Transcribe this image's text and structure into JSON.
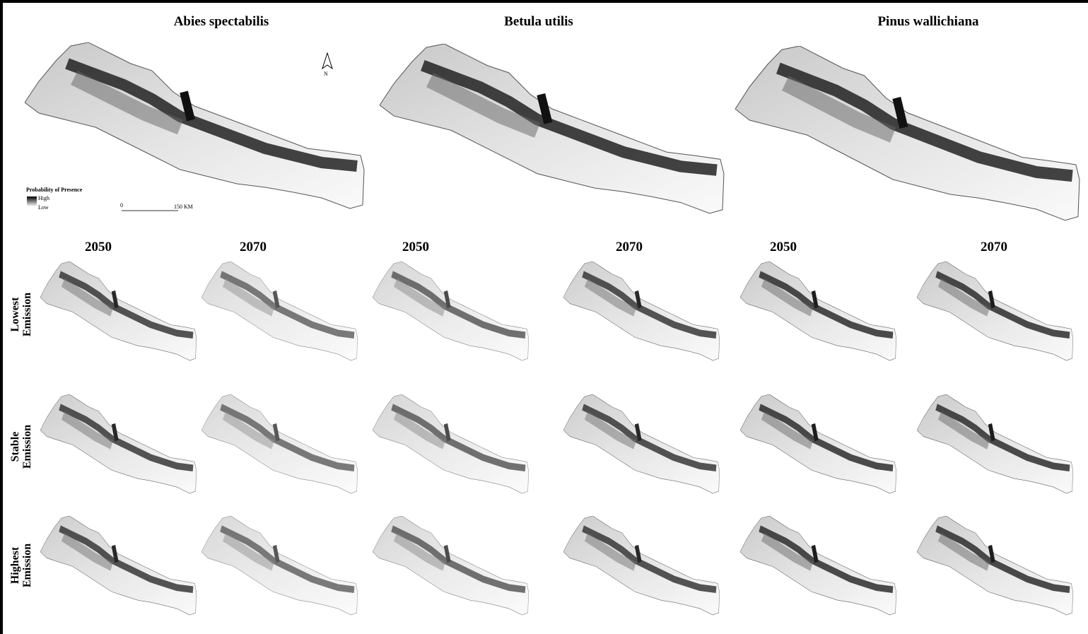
{
  "species": [
    "Abies spectabilis",
    "Betula utilis",
    "Pinus wallichiana"
  ],
  "years": [
    [
      "2050",
      "2070"
    ],
    [
      "2050",
      "2070"
    ],
    [
      "2050",
      "2070"
    ]
  ],
  "scenarios": [
    [
      "Lowest",
      "Emission"
    ],
    [
      "Stable",
      "Emission"
    ],
    [
      "Highest",
      "Emission"
    ]
  ],
  "legend": {
    "title": "Probability of Presence",
    "high": "High",
    "low": "Low"
  },
  "scale_bar": {
    "start": "0",
    "end": "150 KM"
  },
  "north_arrow": "N"
}
